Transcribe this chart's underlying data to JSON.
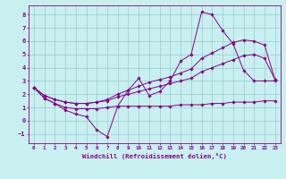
{
  "xlabel": "Windchill (Refroidissement éolien,°C)",
  "xlim": [
    -0.5,
    23.5
  ],
  "ylim": [
    -1.7,
    8.7
  ],
  "xticks": [
    0,
    1,
    2,
    3,
    4,
    5,
    6,
    7,
    8,
    9,
    10,
    11,
    12,
    13,
    14,
    15,
    16,
    17,
    18,
    19,
    20,
    21,
    22,
    23
  ],
  "yticks": [
    -1,
    0,
    1,
    2,
    3,
    4,
    5,
    6,
    7,
    8
  ],
  "background_color": "#c8f0f0",
  "grid_color": "#99cccc",
  "line_color": "#880088",
  "line1_x": [
    0,
    1,
    2,
    3,
    4,
    5,
    6,
    7,
    8,
    9,
    10,
    11,
    12,
    13,
    14,
    15,
    16,
    17,
    18,
    19,
    20,
    21,
    22,
    23
  ],
  "line1_y": [
    2.5,
    1.7,
    1.3,
    0.8,
    0.5,
    0.3,
    -0.7,
    -1.2,
    1.1,
    2.3,
    3.2,
    1.9,
    2.2,
    3.0,
    4.5,
    5.0,
    8.2,
    8.0,
    6.8,
    5.8,
    3.8,
    3.0,
    3.0,
    3.0
  ],
  "line2_x": [
    0,
    1,
    2,
    3,
    4,
    5,
    6,
    7,
    8,
    9,
    10,
    11,
    12,
    13,
    14,
    15,
    16,
    17,
    18,
    19,
    20,
    21,
    22,
    23
  ],
  "line2_y": [
    2.5,
    1.7,
    1.3,
    1.0,
    0.9,
    0.9,
    0.9,
    1.0,
    1.1,
    1.1,
    1.1,
    1.1,
    1.1,
    1.1,
    1.2,
    1.2,
    1.2,
    1.3,
    1.3,
    1.4,
    1.4,
    1.4,
    1.5,
    1.5
  ],
  "line3_x": [
    0,
    1,
    2,
    3,
    4,
    5,
    6,
    7,
    8,
    9,
    10,
    11,
    12,
    13,
    14,
    15,
    16,
    17,
    18,
    19,
    20,
    21,
    22,
    23
  ],
  "line3_y": [
    2.5,
    1.9,
    1.6,
    1.4,
    1.3,
    1.3,
    1.4,
    1.5,
    1.8,
    2.0,
    2.2,
    2.4,
    2.6,
    2.8,
    3.0,
    3.2,
    3.7,
    4.0,
    4.3,
    4.6,
    4.9,
    5.0,
    4.7,
    3.1
  ],
  "line4_x": [
    0,
    1,
    2,
    3,
    4,
    5,
    6,
    7,
    8,
    9,
    10,
    11,
    12,
    13,
    14,
    15,
    16,
    17,
    18,
    19,
    20,
    21,
    22,
    23
  ],
  "line4_y": [
    2.5,
    1.9,
    1.6,
    1.4,
    1.3,
    1.3,
    1.4,
    1.6,
    2.0,
    2.3,
    2.6,
    2.9,
    3.1,
    3.3,
    3.6,
    3.9,
    4.7,
    5.1,
    5.5,
    5.9,
    6.1,
    6.0,
    5.7,
    3.1
  ]
}
